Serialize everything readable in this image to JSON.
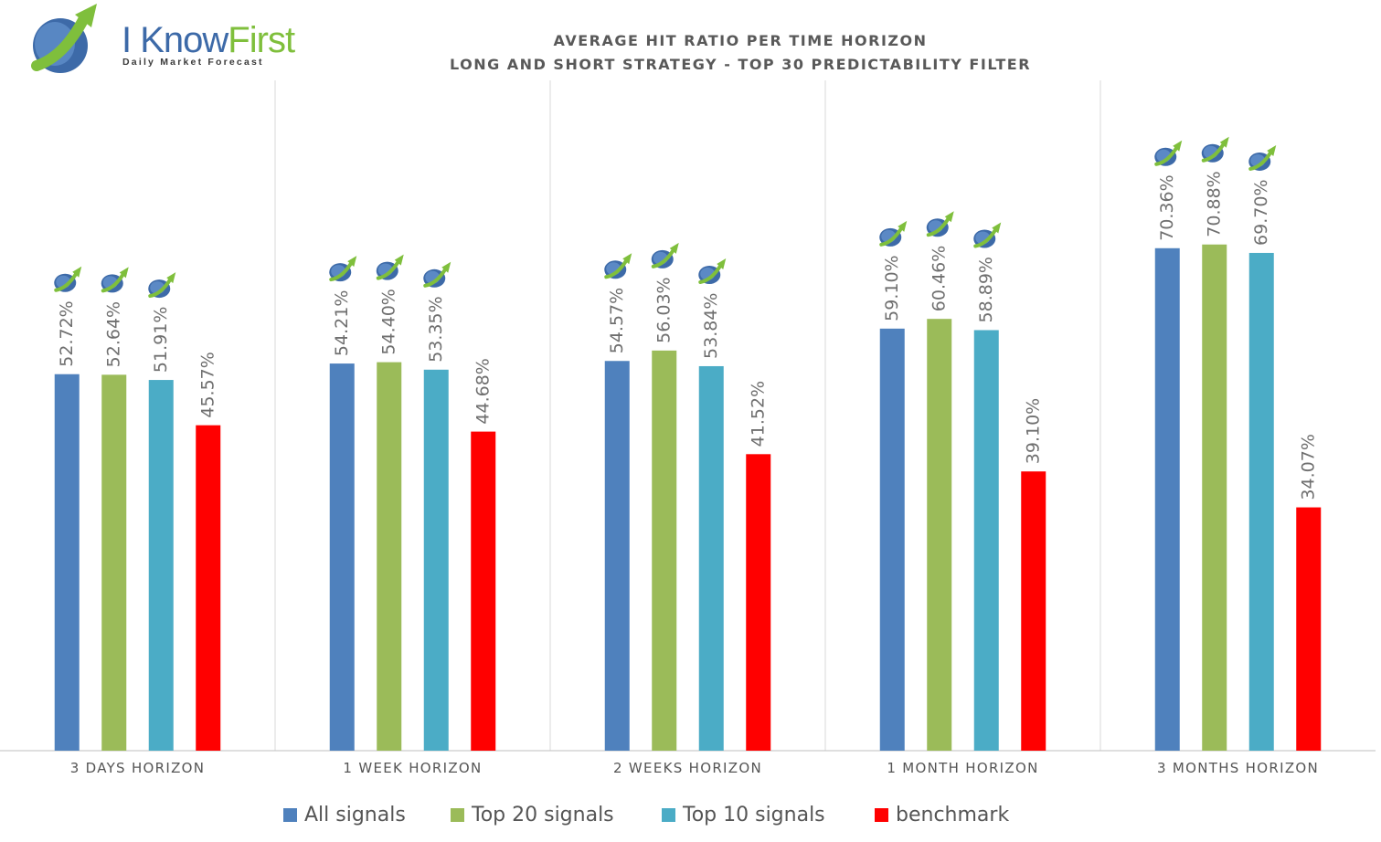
{
  "logo": {
    "brand_part1": "I Know",
    "brand_part2": "First",
    "tagline": "Daily Market Forecast",
    "icon": "rising-arrow-globe-icon"
  },
  "chart_data": {
    "type": "bar",
    "title": "AVERAGE HIT RATIO PER TIME HORIZON",
    "subtitle": "LONG AND SHORT STRATEGY - TOP 30 PREDICTABILITY FILTER",
    "categories": [
      "3 DAYS HORIZON",
      "1 WEEK HORIZON",
      "2 WEEKS HORIZON",
      "1 MONTH HORIZON",
      "3 MONTHS HORIZON"
    ],
    "series": [
      {
        "name": "All signals",
        "color": "#4f81bd",
        "values": [
          52.72,
          54.21,
          54.57,
          59.1,
          70.36
        ],
        "labels": [
          "52.72%",
          "54.21%",
          "54.57%",
          "59.10%",
          "70.36%"
        ]
      },
      {
        "name": "Top 20 signals",
        "color": "#9bbb59",
        "values": [
          52.64,
          54.4,
          56.03,
          60.46,
          70.88
        ],
        "labels": [
          "52.64%",
          "54.40%",
          "56.03%",
          "60.46%",
          "70.88%"
        ]
      },
      {
        "name": "Top 10 signals",
        "color": "#4bacc6",
        "values": [
          51.91,
          53.35,
          53.84,
          58.89,
          69.7
        ],
        "labels": [
          "51.91%",
          "53.35%",
          "53.84%",
          "58.89%",
          "69.70%"
        ]
      },
      {
        "name": "benchmark",
        "color": "#ff0000",
        "values": [
          45.57,
          44.68,
          41.52,
          39.1,
          34.07
        ],
        "labels": [
          "45.57%",
          "44.68%",
          "41.52%",
          "39.10%",
          "34.07%"
        ]
      }
    ],
    "ylim": [
      0,
      90
    ],
    "grid": false,
    "legend_position": "bottom",
    "marker_icon_series": [
      "All signals",
      "Top 20 signals",
      "Top 10 signals"
    ]
  }
}
